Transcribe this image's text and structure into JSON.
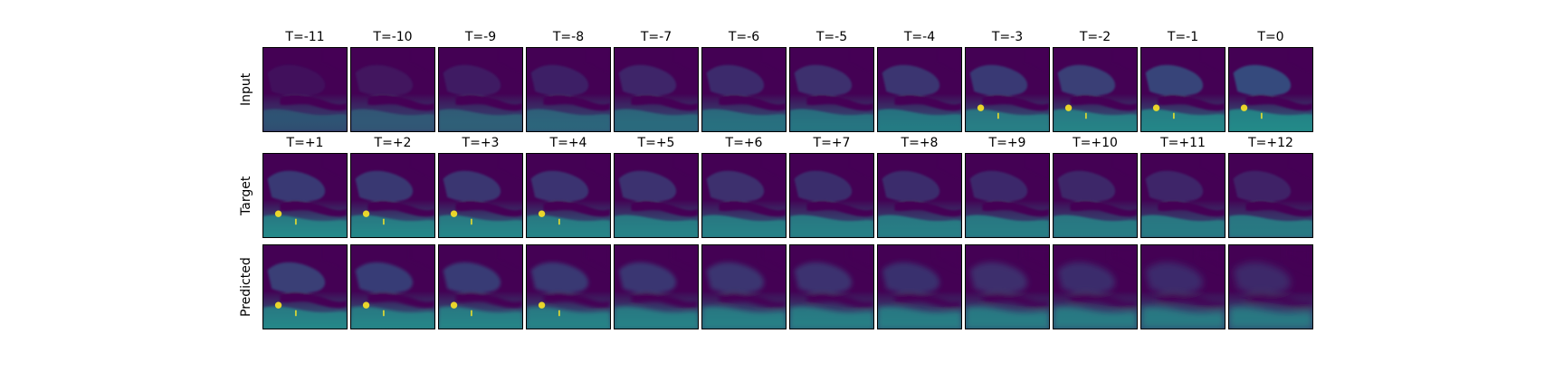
{
  "figure": {
    "rows": [
      {
        "label": "Input",
        "titles": [
          "T=-11",
          "T=-10",
          "T=-9",
          "T=-8",
          "T=-7",
          "T=-6",
          "T=-5",
          "T=-4",
          "T=-3",
          "T=-2",
          "T=-1",
          "T=0"
        ]
      },
      {
        "label": "Target",
        "titles": [
          "T=+1",
          "T=+2",
          "T=+3",
          "T=+4",
          "T=+5",
          "T=+6",
          "T=+7",
          "T=+8",
          "T=+9",
          "T=+10",
          "T=+11",
          "T=+12"
        ]
      },
      {
        "label": "Predicted",
        "titles": []
      }
    ],
    "colormap": "viridis",
    "colors": {
      "low": "#440154",
      "mid": "#31688e",
      "teal": "#21918c",
      "high": "#fde725"
    }
  }
}
